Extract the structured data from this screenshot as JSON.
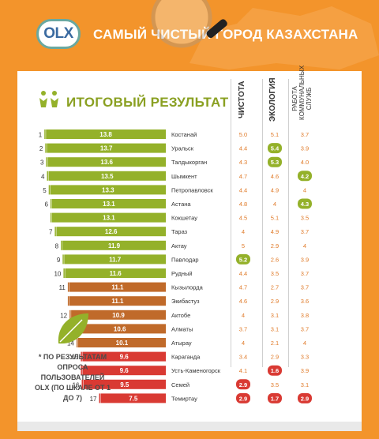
{
  "header": {
    "logo_text": "OLX",
    "title": "САМЫЙ ЧИСТЫЙ ГОРОД КАЗАХСТАНА"
  },
  "subtitle": "ИТОГОВЫЙ РЕЗУЛЬТАТ",
  "columns": {
    "clean": "ЧИСТОТА",
    "ecology": "ЭКОЛОГИЯ",
    "services": "РАБОТА КОММУНАЛЬНЫХ СЛУЖБ"
  },
  "note": "* ПО РЕЗУЛЬТАТАМ ОПРОСА ПОЛЬЗОВАТЕЛЕЙ OLX (ПО ШКАЛЕ ОТ 1 ДО 7)",
  "colors": {
    "green": "#94b12a",
    "brown": "#c06a2a",
    "red": "#d93a33",
    "orange": "#f3942b",
    "score_text": "#e07b2a"
  },
  "chart_data": {
    "type": "bar",
    "title": "ИТОГОВЫЙ РЕЗУЛЬТАТ",
    "xlim": [
      0,
      14
    ],
    "rows": [
      {
        "rank": "1",
        "city": "Костанай",
        "total": 13.8,
        "color": "green",
        "clean": "5.0",
        "ecology": "5.1",
        "services": "3.7",
        "hl": ""
      },
      {
        "rank": "2",
        "city": "Уральск",
        "total": 13.7,
        "color": "green",
        "clean": "4.4",
        "ecology": "5.4",
        "services": "3.9",
        "hl": "ecology"
      },
      {
        "rank": "3",
        "city": "Талдыкорган",
        "total": 13.6,
        "color": "green",
        "clean": "4.3",
        "ecology": "5.3",
        "services": "4.0",
        "hl": "ecology"
      },
      {
        "rank": "4",
        "city": "Шымкент",
        "total": 13.5,
        "color": "green",
        "clean": "4.7",
        "ecology": "4.6",
        "services": "4.2",
        "hl": "services"
      },
      {
        "rank": "5",
        "city": "Петропавловск",
        "total": 13.3,
        "color": "green",
        "clean": "4.4",
        "ecology": "4.9",
        "services": "4",
        "hl": ""
      },
      {
        "rank": "6",
        "city": "Астана",
        "total": 13.1,
        "color": "green",
        "clean": "4.8",
        "ecology": "4",
        "services": "4.3",
        "hl": "services"
      },
      {
        "rank": "",
        "city": "Кокшетау",
        "total": 13.1,
        "color": "green",
        "clean": "4.5",
        "ecology": "5.1",
        "services": "3.5",
        "hl": ""
      },
      {
        "rank": "7",
        "city": "Тараз",
        "total": 12.6,
        "color": "green",
        "clean": "4",
        "ecology": "4.9",
        "services": "3.7",
        "hl": ""
      },
      {
        "rank": "8",
        "city": "Актау",
        "total": 11.9,
        "color": "green",
        "clean": "5",
        "ecology": "2.9",
        "services": "4",
        "hl": ""
      },
      {
        "rank": "9",
        "city": "Павлодар",
        "total": 11.7,
        "color": "green",
        "clean": "5.2",
        "ecology": "2.6",
        "services": "3.9",
        "hl": "clean"
      },
      {
        "rank": "10",
        "city": "Рудный",
        "total": 11.6,
        "color": "green",
        "clean": "4.4",
        "ecology": "3.5",
        "services": "3.7",
        "hl": ""
      },
      {
        "rank": "11",
        "city": "Кызылорда",
        "total": 11.1,
        "color": "brown",
        "clean": "4.7",
        "ecology": "2.7",
        "services": "3.7",
        "hl": ""
      },
      {
        "rank": "",
        "city": "Экибастуз",
        "total": 11.1,
        "color": "brown",
        "clean": "4.6",
        "ecology": "2.9",
        "services": "3.6",
        "hl": ""
      },
      {
        "rank": "12",
        "city": "Актобе",
        "total": 10.9,
        "color": "brown",
        "clean": "4",
        "ecology": "3.1",
        "services": "3.8",
        "hl": ""
      },
      {
        "rank": "13",
        "city": "Алматы",
        "total": 10.6,
        "color": "brown",
        "clean": "3.7",
        "ecology": "3.1",
        "services": "3.7",
        "hl": ""
      },
      {
        "rank": "14",
        "city": "Атырау",
        "total": 10.1,
        "color": "brown",
        "clean": "4",
        "ecology": "2.1",
        "services": "4",
        "hl": ""
      },
      {
        "rank": "15",
        "city": "Караганда",
        "total": 9.6,
        "color": "red",
        "clean": "3.4",
        "ecology": "2.9",
        "services": "3.3",
        "hl": ""
      },
      {
        "rank": "",
        "city": "Усть-Каменогорск",
        "total": 9.6,
        "color": "red",
        "clean": "4.1",
        "ecology": "1.6",
        "services": "3.9",
        "hl": "ecology"
      },
      {
        "rank": "16",
        "city": "Семей",
        "total": 9.5,
        "color": "red",
        "clean": "2.9",
        "ecology": "3.5",
        "services": "3.1",
        "hl": "clean"
      },
      {
        "rank": "17",
        "city": "Темиртау",
        "total": 7.5,
        "color": "red",
        "clean": "2.9",
        "ecology": "1.7",
        "services": "2.9",
        "hl": "all"
      }
    ]
  }
}
